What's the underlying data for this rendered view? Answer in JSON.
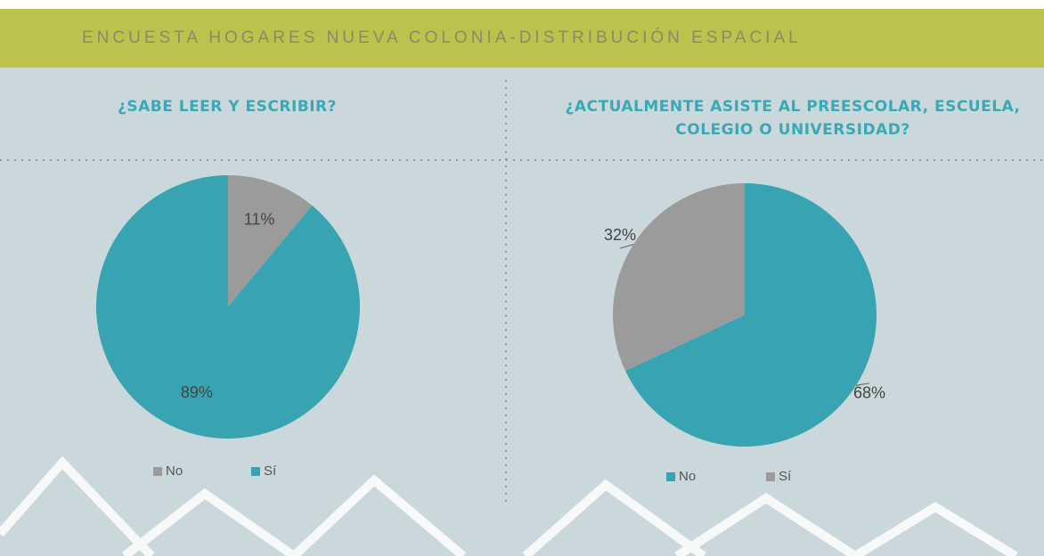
{
  "header": {
    "title": "ENCUESTA HOGARES NUEVA COLONIA-DISTRIBUCIÓN ESPACIAL"
  },
  "chart_data": [
    {
      "type": "pie",
      "title": "¿SABE LEER Y ESCRIBIR?",
      "categories": [
        "No",
        "Sí"
      ],
      "values": [
        11,
        89
      ],
      "value_labels": [
        "11%",
        "89%"
      ],
      "colors": [
        "#9b9b9b",
        "#38a3b1"
      ]
    },
    {
      "type": "pie",
      "title": "¿ACTUALMENTE ASISTE AL PREESCOLAR, ESCUELA, COLEGIO O UNIVERSIDAD?",
      "categories": [
        "No",
        "Sí"
      ],
      "values": [
        68,
        32
      ],
      "value_labels": [
        "68%",
        "32%"
      ],
      "colors": [
        "#38a3b1",
        "#9b9b9b"
      ]
    }
  ]
}
